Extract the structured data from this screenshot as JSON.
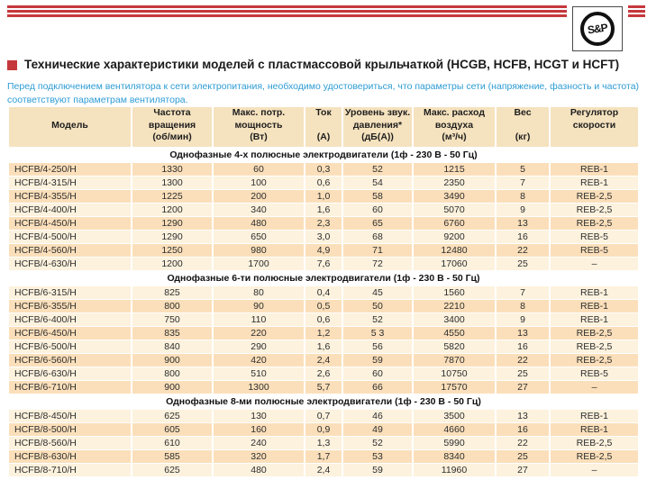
{
  "page": {
    "logo_text": "S&P",
    "title": "Технические характеристики моделей с пластмассовой крыльчаткой (HCGB, HCFB, HCGT и HCFT)",
    "intro": "Перед подключением вентилятора к сети электропитания, необходимо удостовериться, что параметры сети (напряжение, фазность и частота) соответствуют параметрам вентилятора."
  },
  "colors": {
    "red": "#C5383C",
    "blue": "#2D9BD4",
    "header_bg": "#F5E2BE",
    "row_dark": "#FBDFBA",
    "row_light": "#FDF2DE"
  },
  "table": {
    "columns": [
      {
        "key": "model",
        "lines": [
          "",
          "Модель",
          ""
        ]
      },
      {
        "key": "rpm",
        "lines": [
          "Частота",
          "вращения",
          "(об/мин)"
        ]
      },
      {
        "key": "power",
        "lines": [
          "Макс. потр.",
          "мощность",
          "(Вт)"
        ]
      },
      {
        "key": "current",
        "lines": [
          "Ток",
          "",
          "(А)"
        ]
      },
      {
        "key": "noise",
        "lines": [
          "Уровень звук.",
          "давления*",
          "(дБ(А))"
        ]
      },
      {
        "key": "airflow",
        "lines": [
          "Макс. расход",
          "воздуха",
          "(м³/ч)"
        ]
      },
      {
        "key": "weight",
        "lines": [
          "Вес",
          "",
          "(кг)"
        ]
      },
      {
        "key": "regulator",
        "lines": [
          "Регулятор",
          "скорости",
          ""
        ]
      }
    ],
    "sections": [
      {
        "header": "Однофазные 4-х полюсные электродвигатели (1ф - 230 В - 50 Гц)",
        "first_row_dark": true,
        "rows": [
          [
            "HCFB/4-250/H",
            "1330",
            "60",
            "0,3",
            "52",
            "1215",
            "5",
            "REB-1"
          ],
          [
            "HCFB/4-315/H",
            "1300",
            "100",
            "0,6",
            "54",
            "2350",
            "7",
            "REB-1"
          ],
          [
            "HCFB/4-355/H",
            "1225",
            "200",
            "1,0",
            "58",
            "3490",
            "8",
            "REB-2,5"
          ],
          [
            "HCFB/4-400/H",
            "1200",
            "340",
            "1,6",
            "60",
            "5070",
            "9",
            "REB-2,5"
          ],
          [
            "HCFB/4-450/H",
            "1290",
            "480",
            "2,3",
            "65",
            "6760",
            "13",
            "REB-2,5"
          ],
          [
            "HCFB/4-500/H",
            "1290",
            "650",
            "3,0",
            "68",
            "9200",
            "16",
            "REB-5"
          ],
          [
            "HCFB/4-560/H",
            "1250",
            "980",
            "4,9",
            "71",
            "12480",
            "22",
            "REB-5"
          ],
          [
            "HCFB/4-630/H",
            "1200",
            "1700",
            "7,6",
            "72",
            "17060",
            "25",
            "–"
          ]
        ]
      },
      {
        "header": "Однофазные 6-ти полюсные электродвигатели (1ф - 230 В - 50 Гц)",
        "first_row_dark": false,
        "rows": [
          [
            "HCFB/6-315/H",
            "825",
            "80",
            "0,4",
            "45",
            "1560",
            "7",
            "REB-1"
          ],
          [
            "HCFB/6-355/H",
            "800",
            "90",
            "0,5",
            "50",
            "2210",
            "8",
            "REB-1"
          ],
          [
            "HCFB/6-400/H",
            "750",
            "110",
            "0,6",
            "52",
            "3400",
            "9",
            "REB-1"
          ],
          [
            "HCFB/6-450/H",
            "835",
            "220",
            "1,2",
            "5 3",
            "4550",
            "13",
            "REB-2,5"
          ],
          [
            "HCFB/6-500/H",
            "840",
            "290",
            "1,6",
            "56",
            "5820",
            "16",
            "REB-2,5"
          ],
          [
            "HCFB/6-560/H",
            "900",
            "420",
            "2,4",
            "59",
            "7870",
            "22",
            "REB-2,5"
          ],
          [
            "HCFB/6-630/H",
            "800",
            "510",
            "2,6",
            "60",
            "10750",
            "25",
            "REB-5"
          ],
          [
            "HCFB/6-710/H",
            "900",
            "1300",
            "5,7",
            "66",
            "17570",
            "27",
            "–"
          ]
        ]
      },
      {
        "header": "Однофазные 8-ми полюсные электродвигатели (1ф - 230 В - 50 Гц)",
        "first_row_dark": false,
        "rows": [
          [
            "HCFB/8-450/H",
            "625",
            "130",
            "0,7",
            "46",
            "3500",
            "13",
            "REB-1"
          ],
          [
            "HCFB/8-500/H",
            "605",
            "160",
            "0,9",
            "49",
            "4660",
            "16",
            "REB-1"
          ],
          [
            "HCFB/8-560/H",
            "610",
            "240",
            "1,3",
            "52",
            "5990",
            "22",
            "REB-2,5"
          ],
          [
            "HCFB/8-630/H",
            "585",
            "320",
            "1,7",
            "53",
            "8340",
            "25",
            "REB-2,5"
          ],
          [
            "HCFB/8-710/H",
            "625",
            "480",
            "2,4",
            "59",
            "11960",
            "27",
            "–"
          ]
        ]
      }
    ]
  }
}
